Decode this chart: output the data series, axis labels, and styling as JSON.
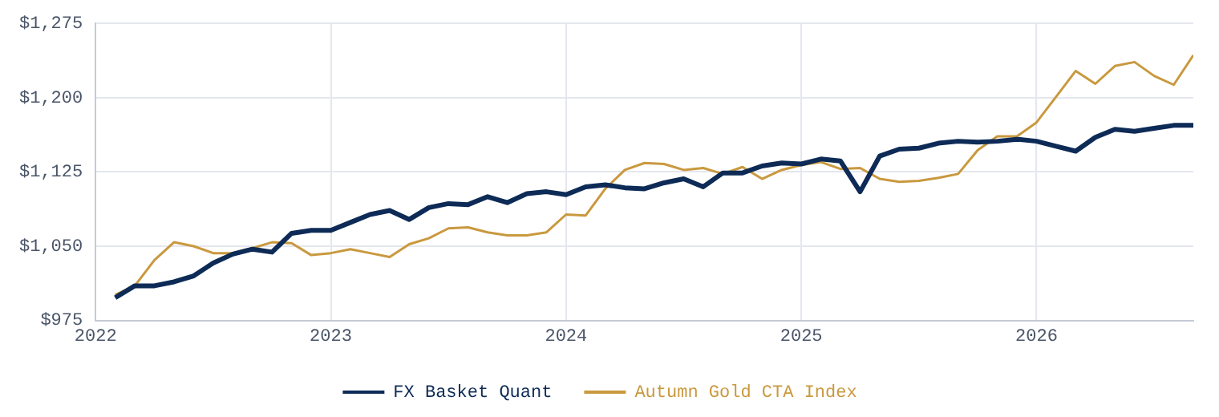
{
  "chart_data": {
    "type": "line",
    "x": [
      "2022-02",
      "2022-03",
      "2022-04",
      "2022-05",
      "2022-06",
      "2022-07",
      "2022-08",
      "2022-09",
      "2022-10",
      "2022-11",
      "2022-12",
      "2023-01",
      "2023-02",
      "2023-03",
      "2023-04",
      "2023-05",
      "2023-06",
      "2023-07",
      "2023-08",
      "2023-09",
      "2023-10",
      "2023-11",
      "2023-12",
      "2024-01",
      "2024-02",
      "2024-03",
      "2024-04",
      "2024-05",
      "2024-06",
      "2024-07",
      "2024-08",
      "2024-09",
      "2024-10",
      "2024-11",
      "2024-12",
      "2025-01",
      "2025-02",
      "2025-03",
      "2025-04",
      "2025-05",
      "2025-06",
      "2025-07",
      "2025-08",
      "2025-09",
      "2025-10",
      "2025-11",
      "2025-12",
      "2026-01",
      "2026-02",
      "2026-03",
      "2026-04",
      "2026-05",
      "2026-06",
      "2026-07",
      "2026-08",
      "2026-09"
    ],
    "series": [
      {
        "name": "FX Basket Quant",
        "color": "#0d2b56",
        "values": [
          998,
          1010,
          1010,
          1014,
          1020,
          1033,
          1042,
          1047,
          1044,
          1063,
          1066,
          1066,
          1074,
          1082,
          1086,
          1077,
          1089,
          1093,
          1092,
          1100,
          1094,
          1103,
          1105,
          1102,
          1110,
          1112,
          1109,
          1108,
          1114,
          1118,
          1110,
          1124,
          1124,
          1131,
          1134,
          1133,
          1138,
          1136,
          1105,
          1141,
          1148,
          1149,
          1154,
          1156,
          1155,
          1156,
          1158,
          1156,
          1151,
          1146,
          1160,
          1168,
          1166,
          1169,
          1172,
          1172
        ]
      },
      {
        "name": "Autumn Gold CTA Index",
        "color": "#c9993f",
        "values": [
          1001,
          1010,
          1036,
          1054,
          1050,
          1043,
          1043,
          1048,
          1054,
          1053,
          1041,
          1043,
          1047,
          1043,
          1039,
          1052,
          1058,
          1068,
          1069,
          1064,
          1061,
          1061,
          1064,
          1082,
          1081,
          1108,
          1127,
          1134,
          1133,
          1127,
          1129,
          1123,
          1130,
          1118,
          1127,
          1132,
          1135,
          1128,
          1129,
          1118,
          1115,
          1116,
          1119,
          1123,
          1147,
          1161,
          1161,
          1175,
          1201,
          1227,
          1214,
          1232,
          1236,
          1222,
          1213,
          1243
        ]
      }
    ],
    "xlim": [
      "2022-01",
      "2026-09"
    ],
    "xticks": [
      "2022",
      "2023",
      "2024",
      "2025",
      "2026"
    ],
    "ylim": [
      975,
      1275
    ],
    "yticks": [
      {
        "value": 975,
        "label": "$975"
      },
      {
        "value": 1050,
        "label": "$1,050"
      },
      {
        "value": 1125,
        "label": "$1,125"
      },
      {
        "value": 1200,
        "label": "$1,200"
      },
      {
        "value": 1275,
        "label": "$1,275"
      }
    ],
    "grid": true,
    "legend": "bottom",
    "marker": "none",
    "line_style": "solid"
  }
}
